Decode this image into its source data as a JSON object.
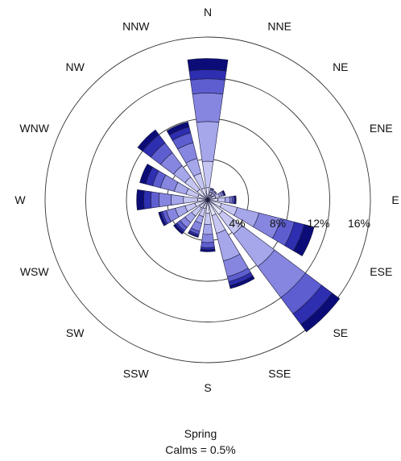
{
  "chart_data": {
    "type": "wind-rose",
    "title": "Spring",
    "subtitle": "Calms = 0.5%",
    "directions": [
      "N",
      "NNE",
      "NE",
      "ENE",
      "E",
      "ESE",
      "SE",
      "SSE",
      "S",
      "SSW",
      "SW",
      "WSW",
      "W",
      "WNW",
      "NW",
      "NNW"
    ],
    "ring_values": [
      4,
      8,
      12,
      16
    ],
    "ring_labels": [
      "4%",
      "8%",
      "12%",
      "16%"
    ],
    "rmax": 16,
    "calms": 0.5,
    "speed_class_colors": [
      "#e4e4fa",
      "#c6c6f2",
      "#a6a6ea",
      "#8686e0",
      "#5e5ed0",
      "#2e2eb0",
      "#0c0c78"
    ],
    "series": [
      {
        "direction": "N",
        "cumulative": [
          1.2,
          3.8,
          7.7,
          10.5,
          11.9,
          12.8,
          13.9
        ]
      },
      {
        "direction": "NNE",
        "cumulative": [
          0.5,
          0.8,
          1.0,
          1.1,
          1.2,
          1.2,
          1.2
        ]
      },
      {
        "direction": "NE",
        "cumulative": [
          0.5,
          0.8,
          1.0,
          1.1,
          1.1,
          1.1,
          1.1
        ]
      },
      {
        "direction": "ENE",
        "cumulative": [
          0.8,
          1.2,
          1.4,
          1.6,
          1.7,
          1.7,
          1.8
        ]
      },
      {
        "direction": "E",
        "cumulative": [
          1.0,
          1.7,
          2.2,
          2.4,
          2.6,
          2.7,
          2.8
        ]
      },
      {
        "direction": "ESE",
        "cumulative": [
          1.4,
          3.0,
          5.2,
          7.4,
          8.8,
          9.8,
          10.8
        ]
      },
      {
        "direction": "SE",
        "cumulative": [
          1.8,
          4.2,
          8.2,
          12.0,
          14.0,
          15.3,
          16.2
        ]
      },
      {
        "direction": "SSE",
        "cumulative": [
          1.6,
          3.4,
          6.2,
          7.8,
          8.3,
          8.7,
          9.0
        ]
      },
      {
        "direction": "S",
        "cumulative": [
          1.3,
          2.4,
          3.4,
          4.2,
          4.7,
          4.9,
          5.1
        ]
      },
      {
        "direction": "SSW",
        "cumulative": [
          0.9,
          1.7,
          2.4,
          3.2,
          3.5,
          3.7,
          3.8
        ]
      },
      {
        "direction": "SW",
        "cumulative": [
          1.0,
          2.0,
          2.8,
          3.4,
          3.8,
          4.0,
          4.2
        ]
      },
      {
        "direction": "WSW",
        "cumulative": [
          1.3,
          2.3,
          3.3,
          4.2,
          4.6,
          4.8,
          5.0
        ]
      },
      {
        "direction": "W",
        "cumulative": [
          1.0,
          2.4,
          3.6,
          4.8,
          5.6,
          6.3,
          7.0
        ]
      },
      {
        "direction": "WNW",
        "cumulative": [
          1.0,
          2.2,
          3.4,
          4.8,
          5.6,
          6.3,
          6.9
        ]
      },
      {
        "direction": "NW",
        "cumulative": [
          1.3,
          2.8,
          4.2,
          5.8,
          7.0,
          8.0,
          8.6
        ]
      },
      {
        "direction": "NNW",
        "cumulative": [
          1.2,
          2.7,
          4.2,
          5.8,
          6.8,
          7.4,
          7.9
        ]
      }
    ]
  }
}
